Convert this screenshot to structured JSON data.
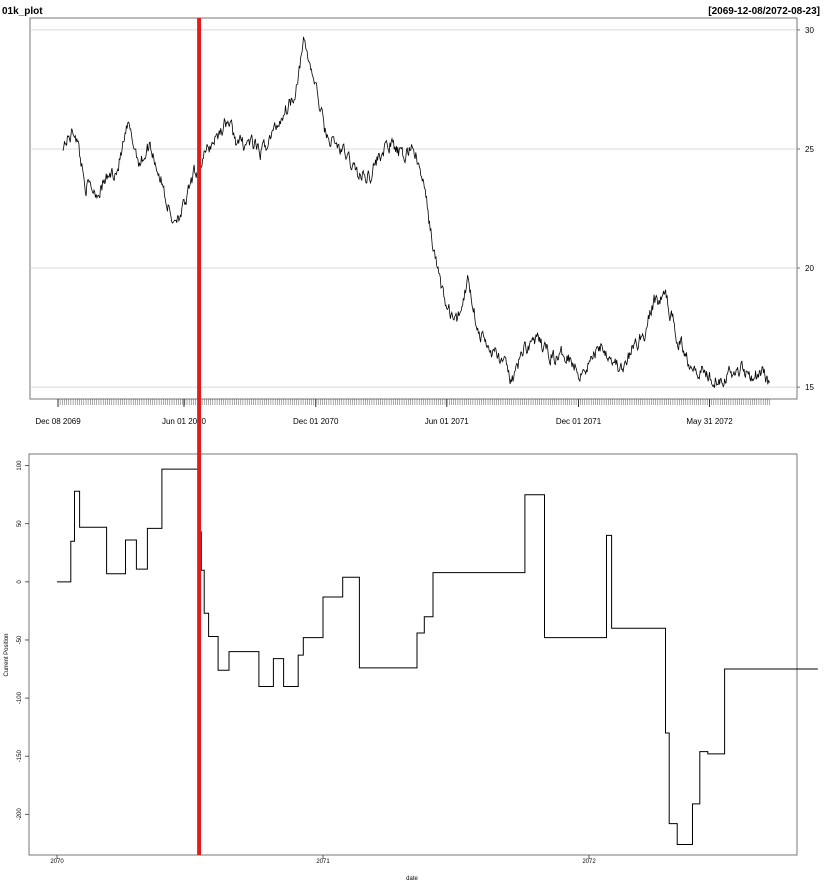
{
  "chart_data": [
    {
      "type": "line",
      "title": "01k_plot",
      "date_range_label": "[2069-12-08/2072-08-23]",
      "xlabel": "",
      "ylabel": "",
      "x_tick_labels": [
        "Dec 08 2069",
        "Jun 01 2070",
        "Dec 01 2070",
        "Jun 01 2071",
        "Dec 01 2071",
        "May 31 2072"
      ],
      "x_tick_dates": [
        "2069-12-08",
        "2070-06-01",
        "2070-12-01",
        "2071-06-01",
        "2071-12-01",
        "2072-05-31"
      ],
      "ylim": [
        14.5,
        30.5
      ],
      "y_ticks": [
        15,
        20,
        25,
        30
      ],
      "grid": "horizontal",
      "series": [
        {
          "x": [
            "2069-12-15",
            "2070-01-01",
            "2070-01-15",
            "2070-02-01",
            "2070-02-15",
            "2070-03-01",
            "2070-03-15",
            "2070-04-01",
            "2070-04-15",
            "2070-05-01",
            "2070-05-15",
            "2070-06-01",
            "2070-06-15",
            "2070-07-01",
            "2070-07-15",
            "2070-08-01",
            "2070-08-15",
            "2070-09-01",
            "2070-09-15",
            "2070-10-01",
            "2070-10-15",
            "2070-11-01",
            "2070-11-15",
            "2070-12-01",
            "2070-12-15",
            "2071-01-01",
            "2071-01-15",
            "2071-02-01",
            "2071-02-15",
            "2071-03-01",
            "2071-03-15",
            "2071-04-01",
            "2071-04-15",
            "2071-05-01",
            "2071-05-15",
            "2071-06-01",
            "2071-06-15",
            "2071-07-01",
            "2071-07-15",
            "2071-08-01",
            "2071-08-15",
            "2071-09-01",
            "2071-09-15",
            "2071-10-01",
            "2071-10-15",
            "2071-11-01",
            "2071-11-15",
            "2071-12-01",
            "2071-12-15",
            "2072-01-01",
            "2072-01-15",
            "2072-02-01",
            "2072-02-15",
            "2072-03-01",
            "2072-03-15",
            "2072-04-01",
            "2072-04-15",
            "2072-05-01",
            "2072-05-15",
            "2072-06-01",
            "2072-06-15",
            "2072-07-01",
            "2072-07-15",
            "2072-08-01",
            "2072-08-15",
            "2072-08-23"
          ],
          "values": [
            25.2,
            25.8,
            23.5,
            23.2,
            23.8,
            24.2,
            25.9,
            24.4,
            25.2,
            23.6,
            22.0,
            22.5,
            23.9,
            24.8,
            25.5,
            26.2,
            25.2,
            25.3,
            24.8,
            25.6,
            26.4,
            27.3,
            29.5,
            27.6,
            25.6,
            25.1,
            24.6,
            23.8,
            24.0,
            24.8,
            25.2,
            24.6,
            25.2,
            23.3,
            20.5,
            18.3,
            17.7,
            19.6,
            17.3,
            16.5,
            16.2,
            15.2,
            16.6,
            17.0,
            16.6,
            16.2,
            16.5,
            15.6,
            16.0,
            16.8,
            16.3,
            15.6,
            16.7,
            17.2,
            18.6,
            18.8,
            17.2,
            16.2,
            15.8,
            15.5,
            15.4,
            15.6,
            15.8,
            15.5,
            15.6,
            15.2
          ]
        }
      ]
    },
    {
      "type": "line",
      "title": "",
      "xlabel": "date",
      "ylabel": "Current Position",
      "x_tick_labels": [
        "2070",
        "2071",
        "2072"
      ],
      "x_tick_dates": [
        "2070-01-01",
        "2071-01-01",
        "2072-01-01"
      ],
      "y_ticks": [
        -200,
        -150,
        -100,
        -50,
        0,
        50,
        100
      ],
      "ylim": [
        -235,
        110
      ],
      "step": true,
      "series": [
        {
          "x": [
            "2070-01-01",
            "2070-01-20",
            "2070-01-25",
            "2070-02-01",
            "2070-03-10",
            "2070-04-05",
            "2070-04-20",
            "2070-05-05",
            "2070-05-25",
            "2070-07-15",
            "2070-07-18",
            "2070-07-22",
            "2070-07-28",
            "2070-08-10",
            "2070-08-25",
            "2070-10-05",
            "2070-10-25",
            "2070-11-08",
            "2070-11-28",
            "2070-12-05",
            "2070-12-20",
            "2071-01-01",
            "2071-01-28",
            "2071-02-20",
            "2071-05-10",
            "2071-05-20",
            "2071-06-01",
            "2071-07-10",
            "2071-10-05",
            "2071-11-01",
            "2072-01-25",
            "2072-02-01",
            "2072-02-05",
            "2072-04-15",
            "2072-04-20",
            "2072-05-01",
            "2072-05-22",
            "2072-06-01",
            "2072-06-12",
            "2072-07-05",
            "2072-11-10"
          ],
          "values": [
            0,
            35,
            78,
            47,
            7,
            36,
            11,
            46,
            97,
            43,
            10,
            -27,
            -47,
            -76,
            -60,
            -90,
            -66,
            -90,
            -63,
            -48,
            -48,
            -13,
            4,
            -74,
            -44,
            -30,
            8,
            8,
            75,
            -48,
            40,
            -40,
            -40,
            -130,
            -208,
            -226,
            -191,
            -146,
            -148,
            -75,
            -75
          ]
        }
      ],
      "annotations": [
        {
          "type": "vertical-marker",
          "color": "#e01c1c",
          "date": "2070-07-15"
        }
      ]
    }
  ]
}
